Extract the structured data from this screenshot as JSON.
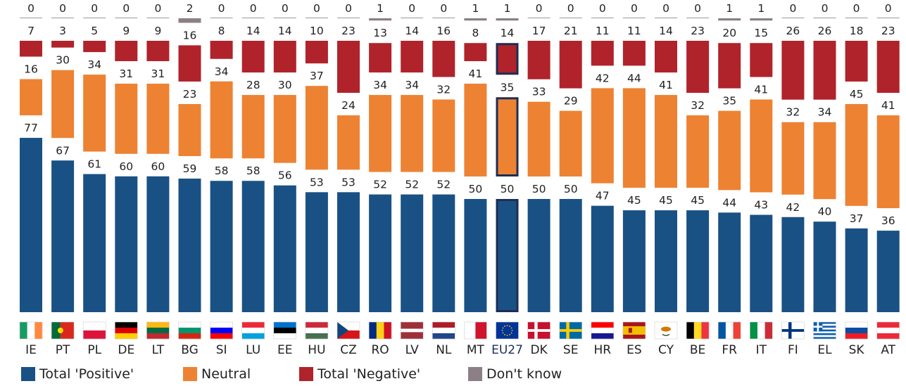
{
  "chart_data": {
    "type": "bar",
    "stacked": true,
    "title": "",
    "xlabel": "",
    "ylabel": "",
    "categories": [
      "IE",
      "PT",
      "PL",
      "DE",
      "LT",
      "BG",
      "SI",
      "LU",
      "EE",
      "HU",
      "CZ",
      "RO",
      "LV",
      "NL",
      "MT",
      "EU27",
      "DK",
      "SE",
      "HR",
      "ES",
      "CY",
      "BE",
      "FR",
      "IT",
      "FI",
      "EL",
      "SK",
      "AT"
    ],
    "highlight_category": "EU27",
    "series": [
      {
        "key": "dontknow",
        "name": "Don't know",
        "color": "#8c7f86",
        "values": [
          0,
          0,
          0,
          0,
          0,
          2,
          0,
          0,
          0,
          0,
          0,
          1,
          0,
          0,
          1,
          1,
          0,
          0,
          0,
          0,
          0,
          0,
          1,
          1,
          0,
          0,
          0,
          0
        ]
      },
      {
        "key": "negative",
        "name": "Total 'Negative'",
        "color": "#b0232b",
        "values": [
          7,
          3,
          5,
          9,
          9,
          16,
          8,
          14,
          14,
          10,
          23,
          13,
          14,
          16,
          8,
          14,
          17,
          21,
          11,
          11,
          14,
          23,
          20,
          15,
          26,
          26,
          18,
          23
        ]
      },
      {
        "key": "neutral",
        "name": "Neutral",
        "color": "#ed8233",
        "values": [
          16,
          30,
          34,
          31,
          31,
          23,
          34,
          28,
          30,
          37,
          24,
          34,
          34,
          32,
          41,
          35,
          33,
          29,
          42,
          44,
          41,
          32,
          35,
          41,
          32,
          34,
          45,
          41
        ]
      },
      {
        "key": "positive",
        "name": "Total 'Positive'",
        "color": "#1a5184",
        "values": [
          77,
          67,
          61,
          60,
          60,
          59,
          58,
          58,
          56,
          53,
          53,
          52,
          52,
          52,
          50,
          50,
          50,
          50,
          47,
          45,
          45,
          45,
          44,
          43,
          42,
          40,
          37,
          36
        ]
      }
    ],
    "legend_position": "bottom-left",
    "grid": false,
    "flags": {
      "IE": {
        "type": "v",
        "colors": [
          "#169b62",
          "#ffffff",
          "#ff883e"
        ]
      },
      "PT": {
        "type": "pt",
        "colors": [
          "#046a38",
          "#da291c"
        ]
      },
      "PL": {
        "type": "h",
        "colors": [
          "#ffffff",
          "#dc143c"
        ]
      },
      "DE": {
        "type": "h",
        "colors": [
          "#000000",
          "#dd0000",
          "#ffce00"
        ]
      },
      "LT": {
        "type": "h",
        "colors": [
          "#fdb913",
          "#006a44",
          "#c1272d"
        ]
      },
      "BG": {
        "type": "h",
        "colors": [
          "#ffffff",
          "#00966e",
          "#d62612"
        ]
      },
      "SI": {
        "type": "h",
        "colors": [
          "#ffffff",
          "#0000ff",
          "#ff0000"
        ]
      },
      "LU": {
        "type": "h",
        "colors": [
          "#ed2939",
          "#ffffff",
          "#00a1de"
        ]
      },
      "EE": {
        "type": "h",
        "colors": [
          "#0072ce",
          "#000000",
          "#ffffff"
        ]
      },
      "HU": {
        "type": "h",
        "colors": [
          "#ce2939",
          "#ffffff",
          "#477050"
        ]
      },
      "CZ": {
        "type": "cz",
        "colors": [
          "#ffffff",
          "#d7141a",
          "#11457e"
        ]
      },
      "RO": {
        "type": "v",
        "colors": [
          "#002b7f",
          "#fcd116",
          "#ce1126"
        ]
      },
      "LV": {
        "type": "lv",
        "colors": [
          "#9e3039",
          "#ffffff"
        ]
      },
      "NL": {
        "type": "h",
        "colors": [
          "#ae1c28",
          "#ffffff",
          "#21468b"
        ]
      },
      "MT": {
        "type": "v2",
        "colors": [
          "#ffffff",
          "#cf142b"
        ]
      },
      "EU27": {
        "type": "eu",
        "colors": [
          "#003399",
          "#ffcc00"
        ]
      },
      "DK": {
        "type": "nordic",
        "colors": [
          "#c8102e",
          "#ffffff"
        ]
      },
      "SE": {
        "type": "nordic",
        "colors": [
          "#006aa7",
          "#fecc00"
        ]
      },
      "HR": {
        "type": "h",
        "colors": [
          "#ff0000",
          "#ffffff",
          "#171796"
        ]
      },
      "ES": {
        "type": "es",
        "colors": [
          "#aa151b",
          "#f1bf00"
        ]
      },
      "CY": {
        "type": "cy",
        "colors": [
          "#ffffff",
          "#d57800"
        ]
      },
      "BE": {
        "type": "v",
        "colors": [
          "#000000",
          "#fdda24",
          "#ef3340"
        ]
      },
      "FR": {
        "type": "v",
        "colors": [
          "#0055a4",
          "#ffffff",
          "#ef4135"
        ]
      },
      "IT": {
        "type": "v",
        "colors": [
          "#009246",
          "#ffffff",
          "#ce2b37"
        ]
      },
      "FI": {
        "type": "nordic",
        "colors": [
          "#ffffff",
          "#003580"
        ]
      },
      "EL": {
        "type": "gr",
        "colors": [
          "#0d5eaf",
          "#ffffff"
        ]
      },
      "SK": {
        "type": "h",
        "colors": [
          "#ffffff",
          "#0b4ea2",
          "#ee1c25"
        ]
      },
      "AT": {
        "type": "h",
        "colors": [
          "#ed2939",
          "#ffffff",
          "#ed2939"
        ]
      }
    }
  },
  "legend": {
    "items": [
      {
        "label": "Total 'Positive'",
        "color": "#1a5184"
      },
      {
        "label": "Neutral",
        "color": "#ed8233"
      },
      {
        "label": "Total 'Negative'",
        "color": "#b0232b"
      },
      {
        "label": "Don't know",
        "color": "#8c7f86"
      }
    ]
  },
  "highlight_outline_color": "#1c2e55"
}
